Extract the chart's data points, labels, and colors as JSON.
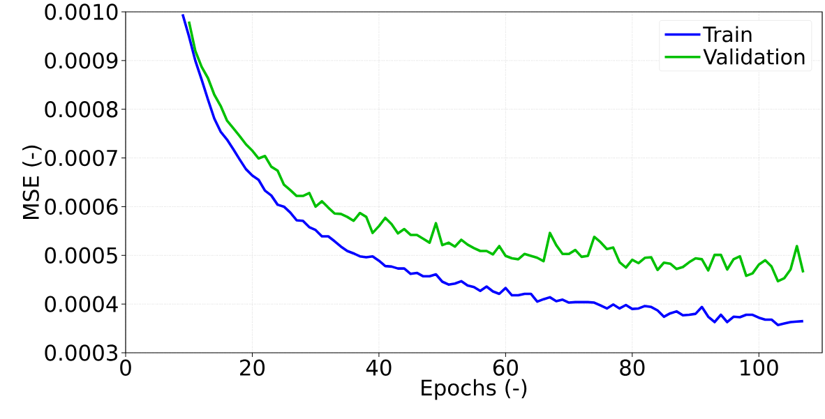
{
  "chart_data": {
    "type": "line",
    "xlabel": "Epochs (-)",
    "ylabel": "MSE (-)",
    "xlim": [
      0,
      110
    ],
    "ylim": [
      0.0003,
      0.001
    ],
    "xticks": [
      0,
      20,
      40,
      60,
      80,
      100
    ],
    "yticks": [
      {
        "value": 0.0003,
        "label": "0.0003"
      },
      {
        "value": 0.0004,
        "label": "0.0004"
      },
      {
        "value": 0.0005,
        "label": "0.0005"
      },
      {
        "value": 0.0006,
        "label": "0.0006"
      },
      {
        "value": 0.0007,
        "label": "0.0007"
      },
      {
        "value": 0.0008,
        "label": "0.0008"
      },
      {
        "value": 0.0009,
        "label": "0.0009"
      },
      {
        "value": 0.001,
        "label": "0.0010"
      }
    ],
    "grid": true,
    "legend": "top right",
    "series": [
      {
        "name": "Train",
        "color": "#0000ff",
        "x": [
          9,
          10,
          11,
          12,
          13,
          14,
          15,
          16,
          17,
          18,
          19,
          20,
          21,
          22,
          23,
          24,
          25,
          26,
          27,
          28,
          29,
          30,
          31,
          32,
          33,
          34,
          35,
          36,
          37,
          38,
          39,
          40,
          41,
          42,
          43,
          44,
          45,
          46,
          47,
          48,
          49,
          50,
          51,
          52,
          53,
          54,
          55,
          56,
          57,
          58,
          59,
          60,
          61,
          62,
          63,
          64,
          65,
          66,
          67,
          68,
          69,
          70,
          71,
          72,
          73,
          74,
          75,
          76,
          77,
          78,
          79,
          80,
          81,
          82,
          83,
          84,
          85,
          86,
          87,
          88,
          89,
          90,
          91,
          92,
          93,
          94,
          95,
          96,
          97,
          98,
          99,
          100,
          101,
          102,
          103,
          104,
          105,
          106,
          107
        ],
        "values": [
          0.000995,
          0.00095,
          0.0009,
          0.000861,
          0.00082,
          0.000781,
          0.000754,
          0.000738,
          0.000718,
          0.000697,
          0.000677,
          0.000664,
          0.000655,
          0.000633,
          0.000623,
          0.000604,
          0.0006,
          0.000588,
          0.000572,
          0.000571,
          0.000558,
          0.000552,
          0.000539,
          0.000539,
          0.000529,
          0.000518,
          0.000509,
          0.000504,
          0.000498,
          0.000496,
          0.000498,
          0.000489,
          0.000478,
          0.000477,
          0.000473,
          0.000473,
          0.000462,
          0.000464,
          0.000457,
          0.000457,
          0.000461,
          0.000446,
          0.00044,
          0.000442,
          0.000447,
          0.000438,
          0.000435,
          0.000427,
          0.000436,
          0.000426,
          0.000421,
          0.000433,
          0.000418,
          0.000418,
          0.000421,
          0.000421,
          0.000405,
          0.00041,
          0.000414,
          0.000406,
          0.000409,
          0.000403,
          0.000404,
          0.000404,
          0.000404,
          0.000403,
          0.000397,
          0.000391,
          0.000399,
          0.000391,
          0.000398,
          0.00039,
          0.000391,
          0.000396,
          0.000394,
          0.000387,
          0.000374,
          0.000381,
          0.000385,
          0.000377,
          0.000378,
          0.00038,
          0.000394,
          0.000374,
          0.000363,
          0.000378,
          0.000363,
          0.000374,
          0.000373,
          0.000378,
          0.000378,
          0.000372,
          0.000368,
          0.000368,
          0.000357,
          0.00036,
          0.000363,
          0.000364,
          0.000365
        ]
      },
      {
        "name": "Validation",
        "color": "#00c000",
        "x": [
          10,
          11,
          12,
          13,
          14,
          15,
          16,
          17,
          18,
          19,
          20,
          21,
          22,
          23,
          24,
          25,
          26,
          27,
          28,
          29,
          30,
          31,
          32,
          33,
          34,
          35,
          36,
          37,
          38,
          39,
          40,
          41,
          42,
          43,
          44,
          45,
          46,
          47,
          48,
          49,
          50,
          51,
          52,
          53,
          54,
          55,
          56,
          57,
          58,
          59,
          60,
          61,
          62,
          63,
          64,
          65,
          66,
          67,
          68,
          69,
          70,
          71,
          72,
          73,
          74,
          75,
          76,
          77,
          78,
          79,
          80,
          81,
          82,
          83,
          84,
          85,
          86,
          87,
          88,
          89,
          90,
          91,
          92,
          93,
          94,
          95,
          96,
          97,
          98,
          99,
          100,
          101,
          102,
          103,
          104,
          105,
          106,
          107
        ],
        "values": [
          0.00098,
          0.00092,
          0.000887,
          0.000864,
          0.00083,
          0.000807,
          0.000777,
          0.000761,
          0.000745,
          0.000728,
          0.000715,
          0.000699,
          0.000704,
          0.000682,
          0.000674,
          0.000645,
          0.000634,
          0.000622,
          0.000622,
          0.000628,
          0.0006,
          0.000611,
          0.000598,
          0.000586,
          0.000585,
          0.000579,
          0.000571,
          0.000587,
          0.000579,
          0.000546,
          0.00056,
          0.000577,
          0.000564,
          0.000545,
          0.000554,
          0.000542,
          0.000542,
          0.000534,
          0.000526,
          0.000566,
          0.000521,
          0.000526,
          0.000518,
          0.000532,
          0.000522,
          0.000515,
          0.000509,
          0.000509,
          0.000502,
          0.000519,
          0.000499,
          0.000494,
          0.000492,
          0.000503,
          0.000499,
          0.000495,
          0.000488,
          0.000546,
          0.000521,
          0.000503,
          0.000503,
          0.000511,
          0.000497,
          0.000499,
          0.000538,
          0.000527,
          0.000513,
          0.000516,
          0.000486,
          0.000475,
          0.000491,
          0.000484,
          0.000495,
          0.000496,
          0.00047,
          0.000485,
          0.000483,
          0.000472,
          0.000476,
          0.000486,
          0.000494,
          0.000492,
          0.000469,
          0.000501,
          0.000501,
          0.000471,
          0.000492,
          0.000498,
          0.000458,
          0.000463,
          0.000481,
          0.00049,
          0.000477,
          0.000447,
          0.000453,
          0.000471,
          0.000519,
          0.000465
        ]
      }
    ]
  }
}
